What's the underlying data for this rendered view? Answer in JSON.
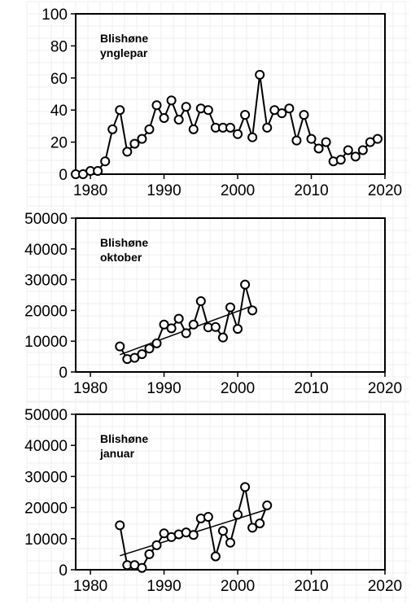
{
  "chart_data": [
    {
      "type": "line",
      "label_lines": [
        "Blishøne",
        "ynglepar"
      ],
      "xlim": [
        1978,
        2020
      ],
      "ylim": [
        0,
        100
      ],
      "xticks": [
        1980,
        1990,
        2000,
        2010,
        2020
      ],
      "yticks": [
        0,
        20,
        40,
        60,
        80,
        100
      ],
      "grid": true,
      "series": [
        {
          "x": [
            1978,
            1979,
            1980,
            1981,
            1982,
            1983,
            1984,
            1985,
            1986,
            1987,
            1988,
            1989,
            1990,
            1991,
            1992,
            1993,
            1994,
            1995,
            1996,
            1997,
            1998,
            1999,
            2000,
            2001,
            2002,
            2003,
            2004,
            2005,
            2006,
            2007,
            2008,
            2009,
            2010,
            2011,
            2012,
            2013,
            2014,
            2015,
            2016,
            2017,
            2018,
            2019
          ],
          "y": [
            0,
            0,
            2,
            2,
            8,
            28,
            40,
            14,
            19,
            22,
            28,
            43,
            35,
            46,
            34,
            42,
            28,
            41,
            40,
            29,
            29,
            29,
            25,
            37,
            23,
            62,
            29,
            40,
            38,
            41,
            21,
            37,
            22,
            16,
            20,
            8,
            9,
            15,
            11,
            15,
            20,
            22
          ]
        }
      ],
      "trendline": null
    },
    {
      "type": "line",
      "label_lines": [
        "Blishøne",
        "oktober"
      ],
      "xlim": [
        1978,
        2020
      ],
      "ylim": [
        0,
        50000
      ],
      "xticks": [
        1980,
        1990,
        2000,
        2010,
        2020
      ],
      "yticks": [
        0,
        10000,
        20000,
        30000,
        40000,
        50000
      ],
      "grid": true,
      "series": [
        {
          "x": [
            1984,
            1985,
            1986,
            1987,
            1988,
            1989,
            1990,
            1991,
            1992,
            1993,
            1994,
            1995,
            1996,
            1997,
            1998,
            1999,
            2000,
            2001,
            2002
          ],
          "y": [
            8300,
            4200,
            4600,
            5800,
            7600,
            9300,
            15400,
            14200,
            17300,
            12600,
            15400,
            23000,
            14500,
            14600,
            11200,
            21000,
            14000,
            28400,
            20000
          ]
        }
      ],
      "trendline": {
        "x": [
          1984,
          2002
        ],
        "y": [
          5600,
          21500
        ]
      }
    },
    {
      "type": "line",
      "label_lines": [
        "Blishøne",
        "januar"
      ],
      "xlim": [
        1978,
        2020
      ],
      "ylim": [
        0,
        50000
      ],
      "xticks": [
        1980,
        1990,
        2000,
        2010,
        2020
      ],
      "yticks": [
        0,
        10000,
        20000,
        30000,
        40000,
        50000
      ],
      "grid": true,
      "series": [
        {
          "x": [
            1984,
            1985,
            1986,
            1987,
            1988,
            1989,
            1990,
            1991,
            1992,
            1993,
            1994,
            1995,
            1996,
            1997,
            1998,
            1999,
            2000,
            2001,
            2002,
            2003,
            2004
          ],
          "y": [
            14300,
            1500,
            1500,
            600,
            5000,
            7900,
            11700,
            10500,
            11400,
            12000,
            11200,
            16500,
            17000,
            4300,
            12500,
            8700,
            17700,
            26600,
            13500,
            14900,
            20700
          ]
        }
      ],
      "trendline": {
        "x": [
          1984,
          2004
        ],
        "y": [
          4500,
          19400
        ]
      }
    }
  ]
}
